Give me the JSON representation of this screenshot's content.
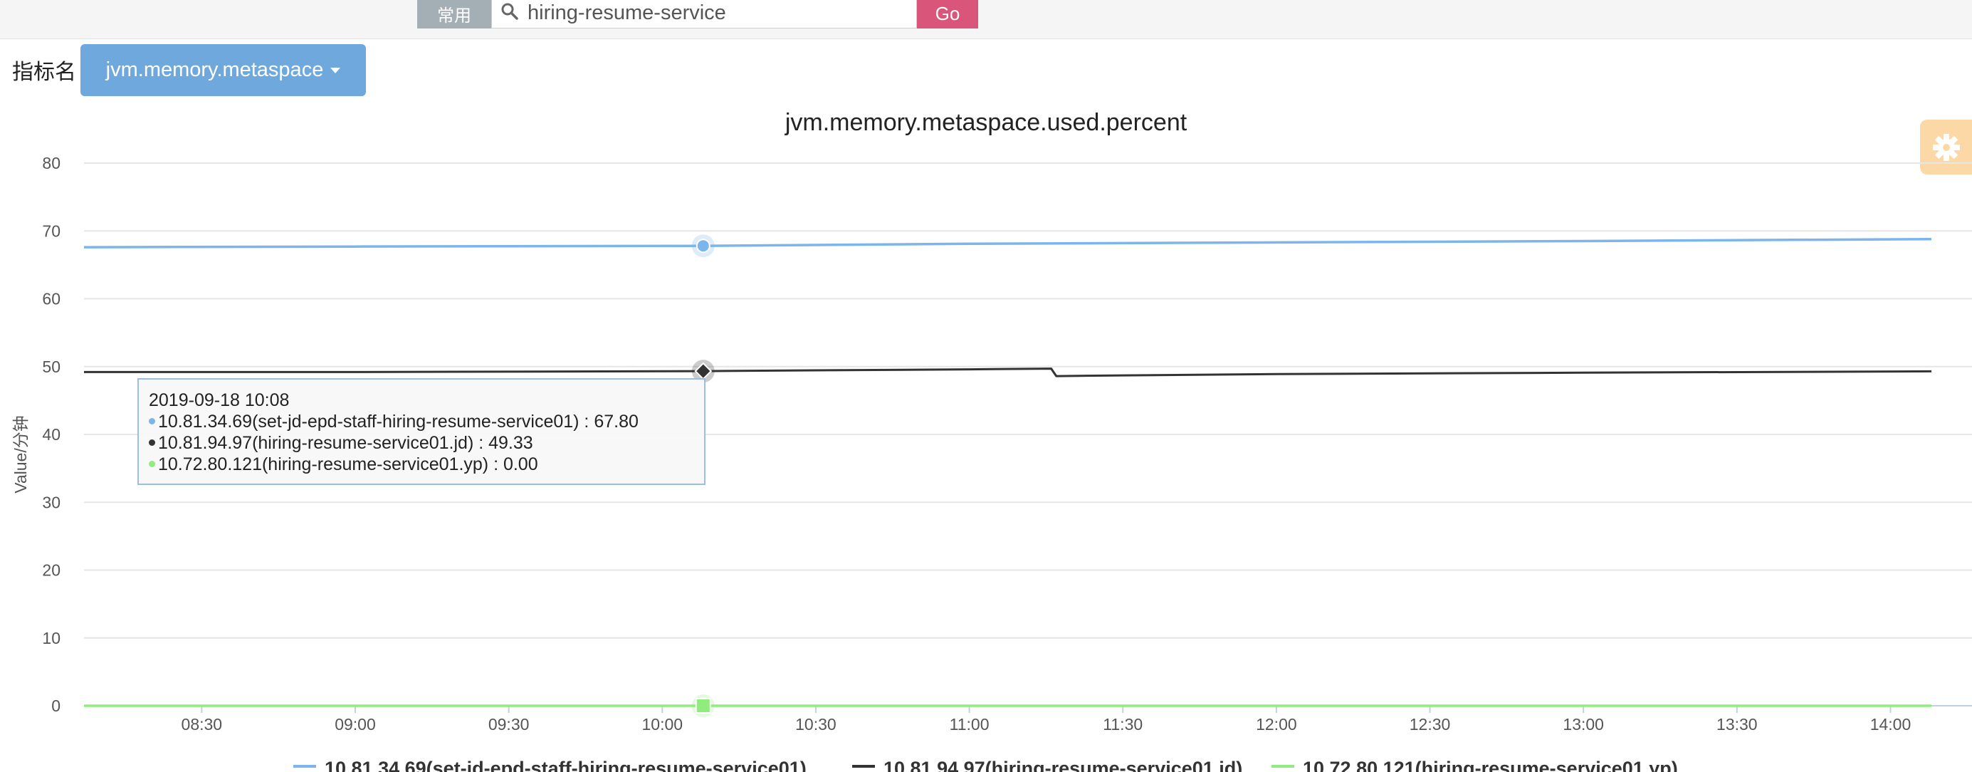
{
  "toolbar": {
    "quick_label": "常用",
    "search_value": "hiring-resume-service",
    "go_label": "Go"
  },
  "metric": {
    "label": "指标名",
    "selected": "jvm.memory.metaspace"
  },
  "settings": {
    "icon": "gear-icon"
  },
  "chart_data": {
    "type": "line",
    "title": "jvm.memory.metaspace.used.percent",
    "ylabel": "Value/分钟",
    "xlabel": "",
    "ylim": [
      0,
      80
    ],
    "yticks": [
      0,
      10,
      20,
      30,
      40,
      50,
      60,
      70,
      80
    ],
    "xlim": [
      "08:07",
      "14:08"
    ],
    "xticks": [
      "08:30",
      "09:00",
      "09:30",
      "10:00",
      "10:30",
      "11:00",
      "11:30",
      "12:00",
      "12:30",
      "13:00",
      "13:30",
      "14:00"
    ],
    "grid": true,
    "legend_position": "bottom",
    "series": [
      {
        "name": "10.81.34.69(set-jd-epd-staff-hiring-resume-service01)",
        "color": "#7cb5ec",
        "points": [
          [
            "08:07",
            67.6
          ],
          [
            "09:00",
            67.7
          ],
          [
            "10:08",
            67.8
          ],
          [
            "11:00",
            68.1
          ],
          [
            "12:00",
            68.3
          ],
          [
            "13:00",
            68.5
          ],
          [
            "14:08",
            68.8
          ]
        ]
      },
      {
        "name": "10.81.94.97(hiring-resume-service01.jd)",
        "color": "#333333",
        "points": [
          [
            "08:07",
            49.2
          ],
          [
            "09:00",
            49.2
          ],
          [
            "10:08",
            49.33
          ],
          [
            "11:00",
            49.6
          ],
          [
            "11:16",
            49.7
          ],
          [
            "11:17",
            48.6
          ],
          [
            "11:30",
            48.7
          ],
          [
            "12:00",
            48.9
          ],
          [
            "13:00",
            49.1
          ],
          [
            "14:08",
            49.3
          ]
        ]
      },
      {
        "name": "10.72.80.121(hiring-resume-service01.yp)",
        "color": "#90ed7d",
        "points": [
          [
            "08:07",
            0.0
          ],
          [
            "14:08",
            0.0
          ]
        ]
      }
    ],
    "hover": {
      "time": "10:08",
      "series_values": [
        67.8,
        49.33,
        0.0
      ]
    }
  },
  "tooltip": {
    "header": "2019-09-18 10:08",
    "rows": [
      {
        "text": "10.81.34.69(set-jd-epd-staff-hiring-resume-service01) : 67.80",
        "color": "#7cb5ec"
      },
      {
        "text": "10.81.94.97(hiring-resume-service01.jd) : 49.33",
        "color": "#333333"
      },
      {
        "text": "10.72.80.121(hiring-resume-service01.yp) : 0.00",
        "color": "#90ed7d"
      }
    ]
  }
}
